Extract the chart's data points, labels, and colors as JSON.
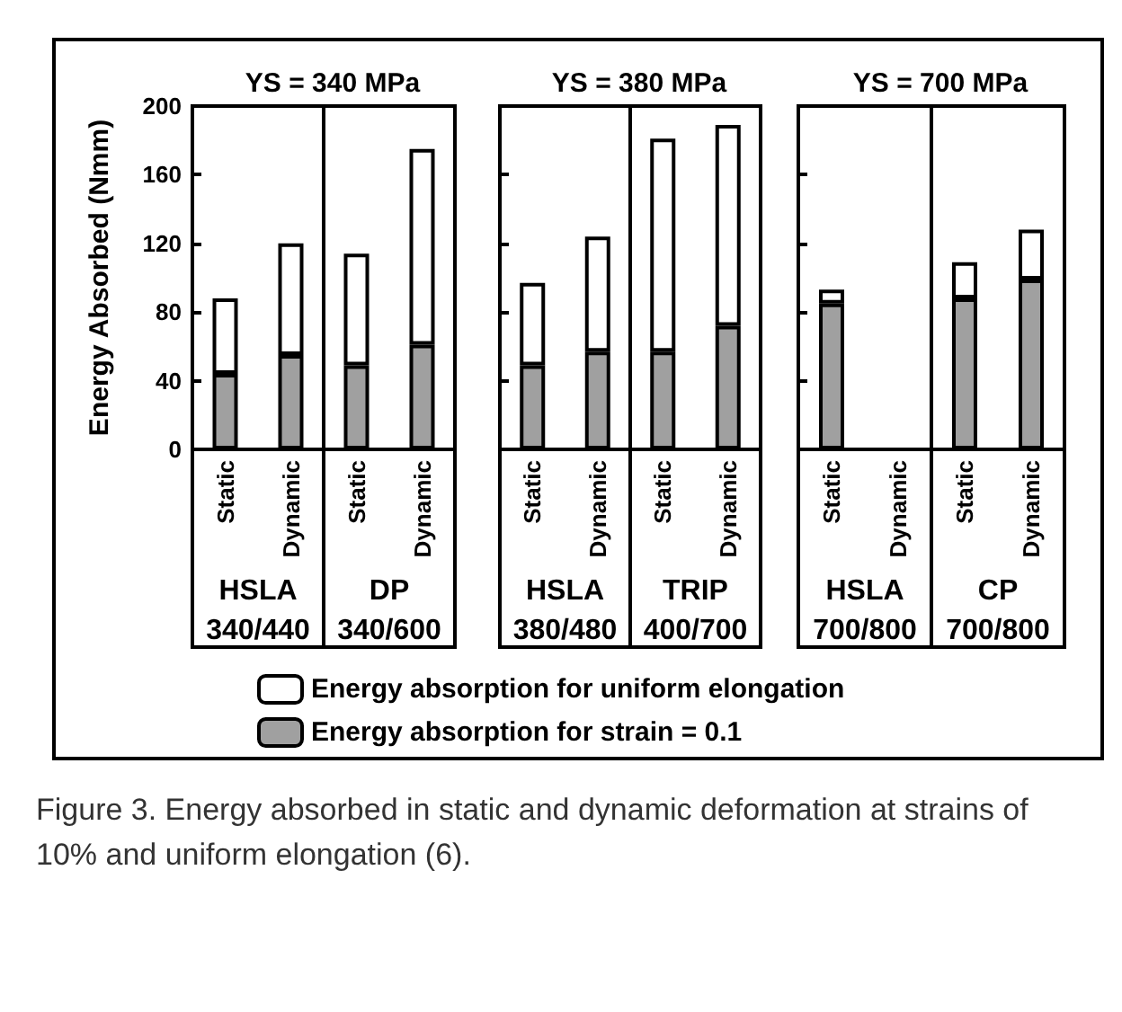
{
  "chart_data": [
    {
      "type": "bar",
      "title": "YS = 340 MPa",
      "ylabel": "Energy Absorbed (Nmm)",
      "categories": [
        "Static",
        "Dynamic",
        "Static",
        "Dynamic"
      ],
      "stacked": true,
      "ylim": [
        0,
        200
      ],
      "yticks": [
        0,
        40,
        80,
        120,
        160,
        200
      ],
      "grid": false,
      "legend": "bottom",
      "series": [
        {
          "name": "Energy absorption for strain = 0.1",
          "color": "#a0a0a0",
          "values": [
            44,
            55,
            49,
            61
          ]
        },
        {
          "name": "Energy absorption for uniform elongation",
          "color": "#ffffff",
          "values": [
            44,
            65,
            65,
            114
          ]
        }
      ],
      "annotations": [
        "HSLA\n340/440",
        "DP\n340/600",
        "Figure 3. Energy absorbed in static and dynamic deformation at strains of 10% and uniform elongation (6)."
      ]
    },
    {
      "type": "bar",
      "title": "YS = 380 MPa",
      "categories": [
        "Static",
        "Dynamic",
        "Static",
        "Dynamic"
      ],
      "stacked": true,
      "ylim": [
        0,
        200
      ],
      "yticks": [
        0,
        40,
        80,
        120,
        160,
        200
      ],
      "tick_labels": "x",
      "grid": false,
      "series": [
        {
          "color": "#a0a0a0",
          "values": [
            49,
            57,
            57,
            72
          ]
        },
        {
          "color": "#ffffff",
          "values": [
            48,
            67,
            124,
            117
          ]
        }
      ],
      "annotations": [
        "HSLA\n380/480",
        "TRIP\n400/700"
      ]
    },
    {
      "type": "bar",
      "title": "YS = 700 MPa",
      "categories": [
        "Static",
        "Dynamic",
        "Static",
        "Dynamic"
      ],
      "stacked": true,
      "ylim": [
        0,
        200
      ],
      "yticks": [
        0,
        40,
        80,
        120,
        160,
        200
      ],
      "tick_labels": "x",
      "grid": false,
      "series": [
        {
          "color": "#a0a0a0",
          "values": [
            85,
            null,
            88,
            99
          ]
        },
        {
          "color": "#ffffff",
          "values": [
            8,
            null,
            21,
            29
          ]
        }
      ],
      "annotations": [
        "HSLA\n700/800",
        "CP\n700/800"
      ]
    }
  ]
}
